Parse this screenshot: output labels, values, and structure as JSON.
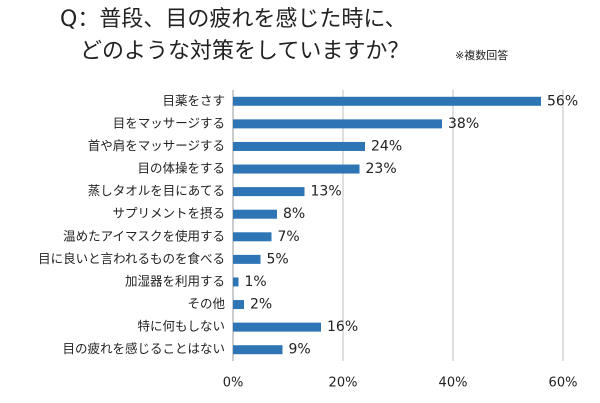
{
  "chart_data": {
    "type": "bar",
    "orientation": "horizontal",
    "title": [
      "Q：普段、目の疲れを感じた時に、",
      "どのような対策をしていますか？"
    ],
    "subtitle": "※複数回答",
    "categories": [
      "目薬をさす",
      "目をマッサージする",
      "首や肩をマッサージする",
      "目の体操をする",
      "蒸しタオルを目にあてる",
      "サプリメントを摂る",
      "温めたアイマスクを使用する",
      "目に良いと言われるものを食べる",
      "加湿器を利用する",
      "その他",
      "特に何もしない",
      "目の疲れを感じることはない"
    ],
    "values": [
      56,
      38,
      24,
      23,
      13,
      8,
      7,
      5,
      1,
      2,
      16,
      9
    ],
    "value_labels": [
      "56%",
      "38%",
      "24%",
      "23%",
      "13%",
      "8%",
      "7%",
      "5%",
      "1%",
      "2%",
      "16%",
      "9%"
    ],
    "color": "#2e75b6",
    "xlim": [
      0,
      60
    ],
    "xticks": [
      {
        "value": 0,
        "label": "0%"
      },
      {
        "value": 20,
        "label": "20%"
      },
      {
        "value": 40,
        "label": "40%"
      },
      {
        "value": 60,
        "label": "60%"
      }
    ],
    "grid": true
  }
}
